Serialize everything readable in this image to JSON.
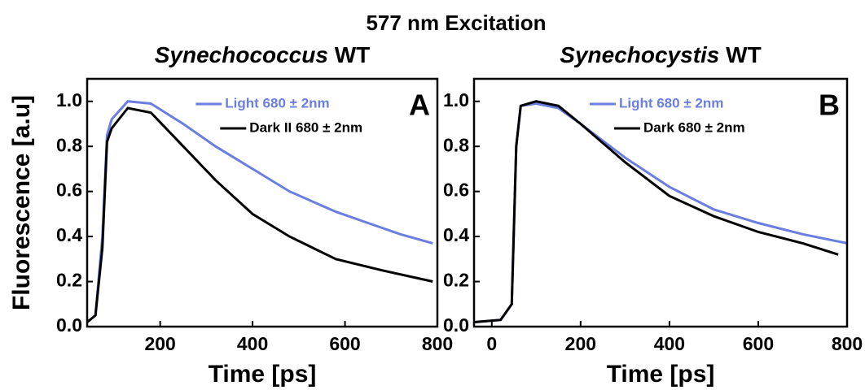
{
  "title": "577 nm Excitation",
  "chart_data": [
    {
      "type": "line",
      "title": "Synechococcus WT",
      "annotation": "A",
      "xlabel": "Time [ps]",
      "ylabel": "Fluorescence [a.u]",
      "xlim": [
        42,
        800
      ],
      "ylim": [
        0,
        1.1
      ],
      "xticks": [
        200,
        400,
        600,
        800
      ],
      "yticks": [
        {
          "value": 0,
          "label": "0.0"
        },
        0.2,
        0.4,
        0.6,
        0.8,
        {
          "value": 1,
          "label": "1.0"
        }
      ],
      "series": [
        {
          "name": "Light 680 ± 2nm",
          "color": "#6b7ee0",
          "x": [
            42,
            60,
            75,
            85,
            95,
            130,
            180,
            250,
            320,
            400,
            480,
            580,
            650,
            720,
            790
          ],
          "values": [
            0.02,
            0.05,
            0.4,
            0.85,
            0.92,
            1.0,
            0.99,
            0.9,
            0.8,
            0.7,
            0.6,
            0.51,
            0.46,
            0.41,
            0.37
          ]
        },
        {
          "name": "Dark II 680 ± 2nm",
          "color": "#000000",
          "x": [
            42,
            60,
            75,
            85,
            95,
            130,
            180,
            250,
            320,
            400,
            480,
            580,
            680,
            790
          ],
          "values": [
            0.02,
            0.05,
            0.35,
            0.82,
            0.88,
            0.97,
            0.95,
            0.8,
            0.65,
            0.5,
            0.4,
            0.3,
            0.25,
            0.2
          ]
        }
      ]
    },
    {
      "type": "line",
      "title": "Synechocystis WT",
      "annotation": "B",
      "xlabel": "Time [ps]",
      "xlim": [
        -40,
        800
      ],
      "ylim": [
        0,
        1.1
      ],
      "xticks": [
        0,
        200,
        400,
        600,
        800
      ],
      "yticks": [
        {
          "value": 0,
          "label": "0.0"
        },
        0.2,
        0.4,
        0.6,
        0.8,
        {
          "value": 1,
          "label": "1.0"
        }
      ],
      "series": [
        {
          "name": "Light 680 ± 2nm",
          "color": "#6b7ee0",
          "x": [
            -40,
            20,
            45,
            55,
            65,
            100,
            150,
            200,
            300,
            400,
            500,
            600,
            700,
            800
          ],
          "values": [
            0.02,
            0.03,
            0.1,
            0.8,
            0.98,
            0.99,
            0.97,
            0.9,
            0.75,
            0.62,
            0.52,
            0.46,
            0.41,
            0.37
          ]
        },
        {
          "name": "Dark 680 ± 2nm",
          "color": "#000000",
          "x": [
            -40,
            20,
            45,
            55,
            65,
            100,
            150,
            200,
            300,
            400,
            500,
            600,
            700,
            780
          ],
          "values": [
            0.02,
            0.03,
            0.1,
            0.8,
            0.98,
            1.0,
            0.98,
            0.9,
            0.73,
            0.58,
            0.49,
            0.42,
            0.37,
            0.32
          ]
        }
      ]
    }
  ]
}
